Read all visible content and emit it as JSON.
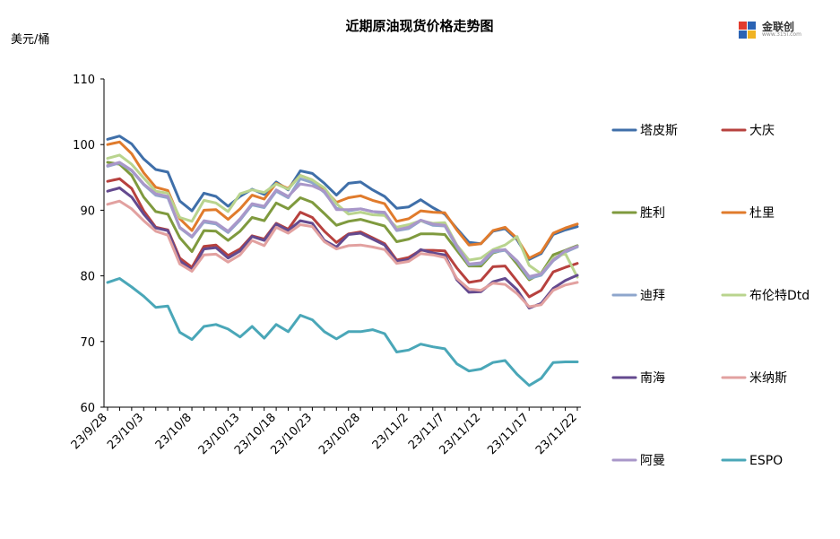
{
  "logo": {
    "text": "金联创",
    "sub": "www.315i.com"
  },
  "chart_data": {
    "type": "line",
    "title": "近期原油现货价格走势图",
    "ylabel": "美元/桶",
    "xlabel": "",
    "ylim": [
      60,
      110
    ],
    "yticks": [
      60,
      70,
      80,
      90,
      100,
      110
    ],
    "grid": false,
    "legend_position": "right",
    "x_tick_labels": [
      "23/9/28",
      "23/10/3",
      "23/10/8",
      "23/10/13",
      "23/10/18",
      "23/10/23",
      "23/10/28",
      "23/11/2",
      "23/11/7",
      "23/11/12",
      "23/11/17",
      "23/11/22"
    ],
    "x": [
      "23/9/28",
      "23/9/29",
      "23/10/2",
      "23/10/3",
      "23/10/4",
      "23/10/5",
      "23/10/6",
      "23/10/9",
      "23/10/10",
      "23/10/11",
      "23/10/12",
      "23/10/13",
      "23/10/16",
      "23/10/17",
      "23/10/18",
      "23/10/19",
      "23/10/20",
      "23/10/23",
      "23/10/24",
      "23/10/25",
      "23/10/26",
      "23/10/27",
      "23/10/30",
      "23/10/31",
      "23/11/1",
      "23/11/2",
      "23/11/3",
      "23/11/6",
      "23/11/7",
      "23/11/8",
      "23/11/9",
      "23/11/10",
      "23/11/13",
      "23/11/14",
      "23/11/15",
      "23/11/16",
      "23/11/17",
      "23/11/20",
      "23/11/21",
      "23/11/22"
    ],
    "series": [
      {
        "name": "塔皮斯",
        "color": "#3f6fa9",
        "values": [
          100.8,
          101.3,
          100.1,
          97.8,
          96.2,
          95.8,
          91.4,
          89.9,
          92.6,
          92.1,
          90.6,
          92.1,
          93.2,
          92.4,
          94.3,
          93.1,
          96.0,
          95.6,
          94.1,
          92.3,
          94.1,
          94.3,
          93.1,
          92.1,
          90.3,
          90.5,
          91.6,
          90.4,
          89.4,
          87.2,
          85.1,
          84.9,
          86.8,
          87.2,
          85.5,
          82.5,
          83.4,
          86.3,
          87.0,
          87.5
        ]
      },
      {
        "name": "大庆",
        "color": "#b7413e",
        "values": [
          94.4,
          94.8,
          93.3,
          89.9,
          87.4,
          87.0,
          82.7,
          81.3,
          84.5,
          84.7,
          83.1,
          84.1,
          86.1,
          85.6,
          88.0,
          87.1,
          89.7,
          88.9,
          86.8,
          85.1,
          86.4,
          86.7,
          85.8,
          84.9,
          82.4,
          82.8,
          83.9,
          83.9,
          83.8,
          81.2,
          79.0,
          79.3,
          81.4,
          81.5,
          79.2,
          76.8,
          77.8,
          80.6,
          81.3,
          81.9
        ]
      },
      {
        "name": "胜利",
        "color": "#7f9a3e",
        "values": [
          97.3,
          97.0,
          95.3,
          92.0,
          89.8,
          89.4,
          85.8,
          83.7,
          86.9,
          86.8,
          85.4,
          86.8,
          88.9,
          88.4,
          91.1,
          90.2,
          91.9,
          91.2,
          89.5,
          87.7,
          88.3,
          88.6,
          88.1,
          87.6,
          85.2,
          85.6,
          86.4,
          86.4,
          86.3,
          83.9,
          81.5,
          81.5,
          83.5,
          84.0,
          81.8,
          79.4,
          80.4,
          83.2,
          83.9,
          84.6
        ]
      },
      {
        "name": "杜里",
        "color": "#e07b2c",
        "values": [
          100.0,
          100.4,
          98.6,
          95.7,
          93.5,
          93.0,
          88.7,
          86.9,
          90.0,
          90.1,
          88.6,
          90.2,
          92.3,
          91.7,
          94.1,
          93.3,
          95.3,
          94.6,
          93.2,
          91.2,
          91.9,
          92.2,
          91.5,
          91.0,
          88.3,
          88.7,
          89.9,
          89.7,
          89.6,
          87.0,
          84.7,
          84.9,
          86.9,
          87.4,
          85.7,
          82.7,
          83.6,
          86.5,
          87.3,
          87.9
        ]
      },
      {
        "name": "迪拜",
        "color": "#8ea6cc",
        "values": [
          96.7,
          97.2,
          96.0,
          93.9,
          92.3,
          91.9,
          87.3,
          85.9,
          88.2,
          87.9,
          86.6,
          88.5,
          90.8,
          90.4,
          92.9,
          91.9,
          94.8,
          94.2,
          92.7,
          90.3,
          89.9,
          90.2,
          89.8,
          89.5,
          86.9,
          87.2,
          88.4,
          87.7,
          87.6,
          84.4,
          81.7,
          81.8,
          83.6,
          83.9,
          82.2,
          79.6,
          80.1,
          82.3,
          83.6,
          84.4
        ]
      },
      {
        "name": "布伦特Dtd",
        "color": "#b9d48e",
        "values": [
          97.9,
          98.4,
          97.0,
          94.9,
          92.9,
          92.6,
          88.9,
          88.3,
          91.5,
          91.1,
          89.8,
          92.5,
          93.1,
          92.7,
          94.0,
          93.2,
          95.3,
          94.6,
          93.4,
          91.0,
          89.4,
          89.7,
          89.3,
          89.2,
          87.4,
          87.8,
          88.4,
          88.0,
          88.1,
          84.7,
          82.4,
          82.7,
          84.0,
          84.7,
          86.0,
          81.6,
          80.3,
          82.7,
          83.4,
          79.8
        ]
      },
      {
        "name": "南海",
        "color": "#644a8f",
        "values": [
          92.9,
          93.4,
          92.0,
          89.4,
          87.3,
          86.9,
          82.3,
          80.9,
          84.1,
          84.3,
          82.7,
          83.8,
          86.0,
          85.4,
          87.9,
          86.9,
          88.4,
          88.0,
          85.4,
          84.4,
          86.3,
          86.5,
          85.6,
          84.7,
          82.2,
          82.5,
          84.0,
          83.5,
          83.2,
          79.4,
          77.5,
          77.6,
          79.1,
          79.6,
          77.9,
          75.1,
          75.8,
          78.1,
          79.3,
          80.1
        ]
      },
      {
        "name": "米纳斯",
        "color": "#e2a1a0",
        "values": [
          90.9,
          91.4,
          90.2,
          88.4,
          86.8,
          86.2,
          81.8,
          80.7,
          83.2,
          83.3,
          82.1,
          83.2,
          85.4,
          84.6,
          87.4,
          86.5,
          87.8,
          87.5,
          85.2,
          84.1,
          84.6,
          84.7,
          84.4,
          84.0,
          81.9,
          82.2,
          83.4,
          83.2,
          82.8,
          79.6,
          78.0,
          77.8,
          78.9,
          78.7,
          77.3,
          75.3,
          75.6,
          77.8,
          78.6,
          79.0
        ]
      },
      {
        "name": "阿曼",
        "color": "#a997c9",
        "values": [
          96.8,
          97.3,
          96.1,
          94.0,
          92.5,
          92.1,
          87.4,
          86.0,
          88.4,
          88.1,
          86.8,
          88.7,
          91.0,
          90.6,
          93.1,
          92.1,
          94.0,
          93.7,
          92.9,
          90.1,
          90.1,
          90.2,
          89.8,
          89.7,
          87.0,
          87.4,
          88.5,
          87.9,
          87.7,
          84.6,
          81.8,
          82.0,
          83.8,
          84.0,
          82.3,
          79.9,
          80.3,
          82.4,
          83.8,
          84.5
        ]
      },
      {
        "name": "ESPO",
        "color": "#4aa7b8",
        "values": [
          79.0,
          79.6,
          78.3,
          76.9,
          75.2,
          75.4,
          71.4,
          70.3,
          72.3,
          72.6,
          71.9,
          70.7,
          72.3,
          70.5,
          72.6,
          71.5,
          74.0,
          73.3,
          71.5,
          70.4,
          71.5,
          71.5,
          71.8,
          71.2,
          68.4,
          68.7,
          69.6,
          69.2,
          68.9,
          66.6,
          65.5,
          65.8,
          66.8,
          67.1,
          65.0,
          63.3,
          64.4,
          66.8,
          66.9,
          66.9
        ]
      }
    ]
  }
}
